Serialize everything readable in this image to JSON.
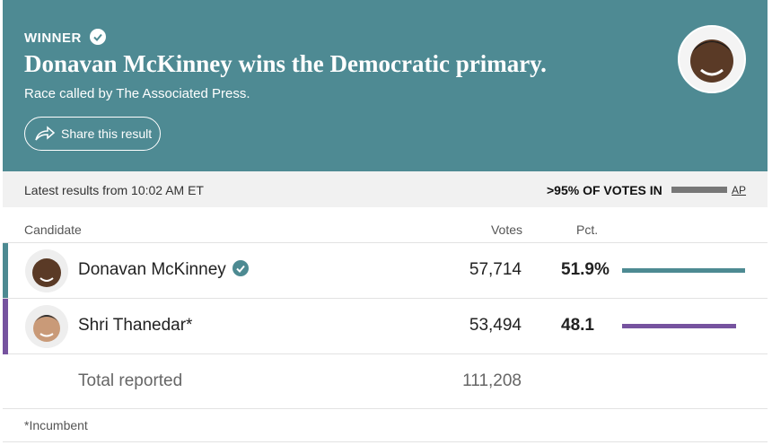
{
  "header": {
    "label": "WINNER",
    "title": "Donavan McKinney wins the Democratic primary.",
    "subtitle": "Race called by The Associated Press.",
    "share_button": "Share this result"
  },
  "status": {
    "updated": "Latest results from 10:02 AM ET",
    "reporting": ">95% OF VOTES IN",
    "source": "AP"
  },
  "table": {
    "columns": [
      "Candidate",
      "Votes",
      "Pct."
    ],
    "rows": [
      {
        "name": "Donavan McKinney",
        "votes": "57,714",
        "pct": 51.9,
        "pct_label": "51.9%",
        "color": "#4d8a92",
        "winner": true
      },
      {
        "name": "Shri Thanedar*",
        "votes": "53,494",
        "pct": 48.1,
        "color": "#76539f",
        "winner": false
      }
    ],
    "total": {
      "label": "Total reported",
      "votes": "111,208"
    }
  },
  "footnote": "*Incumbent"
}
